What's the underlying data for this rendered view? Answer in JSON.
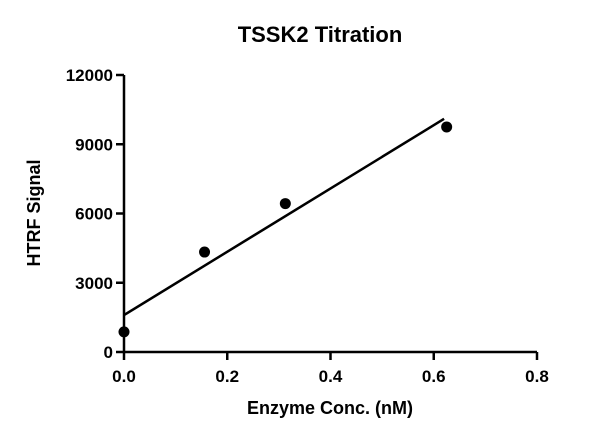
{
  "chart_data": {
    "type": "scatter",
    "title": "TSSK2 Titration",
    "xlabel": "Enzyme Conc. (nM)",
    "ylabel": "HTRF Signal",
    "xlim": [
      0,
      0.8
    ],
    "ylim": [
      0,
      12000
    ],
    "x_ticks": [
      "0.0",
      "0.2",
      "0.4",
      "0.6",
      "0.8"
    ],
    "y_ticks": [
      "0",
      "3000",
      "6000",
      "9000",
      "12000"
    ],
    "grid": false,
    "legend": null,
    "series": [
      {
        "name": "TSSK2",
        "x": [
          0,
          0.156,
          0.3125,
          0.625
        ],
        "y": [
          870,
          4330,
          6430,
          9750
        ],
        "marker": "filled-circle",
        "color": "#000000"
      }
    ],
    "fit_line": {
      "type": "linear",
      "x": [
        0,
        0.62
      ],
      "y": [
        1600,
        10100
      ],
      "color": "#000000"
    }
  }
}
